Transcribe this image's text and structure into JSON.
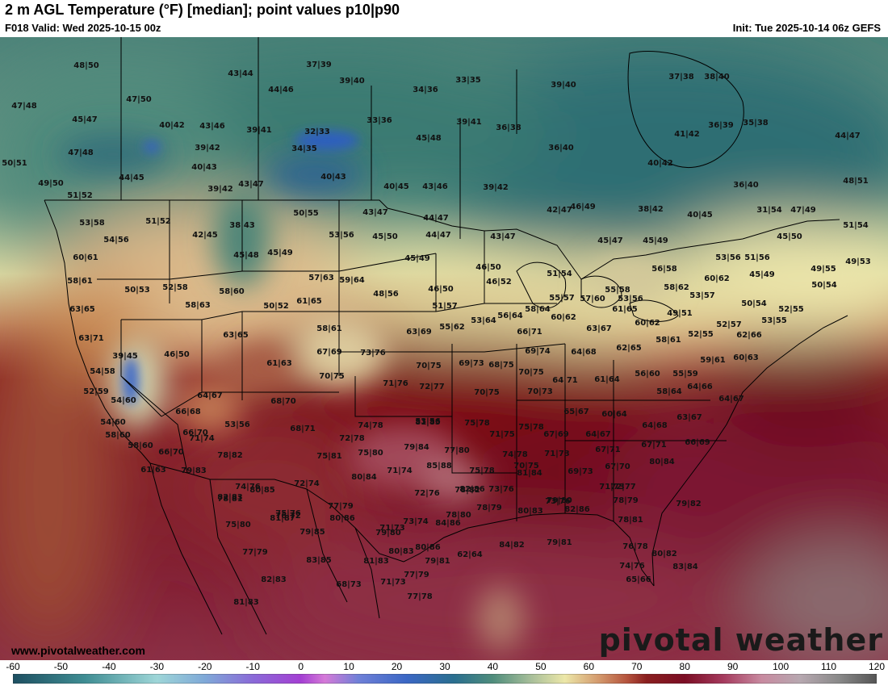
{
  "header": {
    "title": "2 m AGL Temperature (°F) [median]; point values p10|p90",
    "valid": "F018 Valid: Wed 2025-10-15 00z",
    "init": "Init: Tue 2025-10-14 06z GEFS"
  },
  "footer": {
    "website": "www.pivotalweather.com",
    "brand": "pivotal weather"
  },
  "colorbar": {
    "ticks": [
      "-60",
      "-50",
      "-40",
      "-30",
      "-20",
      "-10",
      "0",
      "10",
      "20",
      "30",
      "40",
      "50",
      "60",
      "70",
      "80",
      "90",
      "100",
      "110",
      "120"
    ],
    "range": [
      -60,
      120
    ],
    "stops": [
      {
        "t": -60,
        "c": "#1d4f61"
      },
      {
        "t": -45,
        "c": "#3f8d93"
      },
      {
        "t": -30,
        "c": "#9ed6d8"
      },
      {
        "t": -20,
        "c": "#7fa9d8"
      },
      {
        "t": -10,
        "c": "#8a6ad8"
      },
      {
        "t": 0,
        "c": "#a43fd3"
      },
      {
        "t": 5,
        "c": "#d57ad8"
      },
      {
        "t": 12,
        "c": "#6f80d8"
      },
      {
        "t": 22,
        "c": "#3b67c5"
      },
      {
        "t": 32,
        "c": "#2a6f8f"
      },
      {
        "t": 40,
        "c": "#4f8d7c"
      },
      {
        "t": 48,
        "c": "#a8bf9a"
      },
      {
        "t": 55,
        "c": "#ece7a8"
      },
      {
        "t": 62,
        "c": "#d49a6d"
      },
      {
        "t": 68,
        "c": "#b5533d"
      },
      {
        "t": 72,
        "c": "#8a1f1f"
      },
      {
        "t": 80,
        "c": "#7b0d24"
      },
      {
        "t": 88,
        "c": "#a53a5d"
      },
      {
        "t": 96,
        "c": "#c88aa0"
      },
      {
        "t": 104,
        "c": "#b7a8b0"
      },
      {
        "t": 112,
        "c": "#8a8a8a"
      },
      {
        "t": 120,
        "c": "#555555"
      }
    ]
  },
  "point_values": [
    {
      "text": "48|50"
    },
    {
      "text": "47|48"
    },
    {
      "text": "45|47"
    },
    {
      "text": "47|50"
    },
    {
      "text": "43|44"
    },
    {
      "text": "37|39"
    },
    {
      "text": "39|40"
    },
    {
      "text": "44|46"
    },
    {
      "text": "33|35"
    },
    {
      "text": "34|36"
    },
    {
      "text": "39|40"
    },
    {
      "text": "37|38"
    },
    {
      "text": "38|40"
    },
    {
      "text": "40|42"
    },
    {
      "text": "43|46"
    },
    {
      "text": "39|41"
    },
    {
      "text": "32|33"
    },
    {
      "text": "33|36"
    },
    {
      "text": "39|41"
    },
    {
      "text": "36|38"
    },
    {
      "text": "41|42"
    },
    {
      "text": "36|39"
    },
    {
      "text": "35|38"
    },
    {
      "text": "44|47"
    },
    {
      "text": "47|48"
    },
    {
      "text": "39|42"
    },
    {
      "text": "34|35"
    },
    {
      "text": "45|48"
    },
    {
      "text": "36|40"
    },
    {
      "text": "50|51"
    },
    {
      "text": "40|43"
    },
    {
      "text": "40|43"
    },
    {
      "text": "40|42"
    },
    {
      "text": "44|45"
    },
    {
      "text": "49|50"
    },
    {
      "text": "39|42"
    },
    {
      "text": "43|47"
    },
    {
      "text": "40|45"
    },
    {
      "text": "43|46"
    },
    {
      "text": "39|42"
    },
    {
      "text": "36|40"
    },
    {
      "text": "48|51"
    },
    {
      "text": "51|52"
    },
    {
      "text": "42|47"
    },
    {
      "text": "46|49"
    },
    {
      "text": "38|42"
    },
    {
      "text": "40|45"
    },
    {
      "text": "31|54"
    },
    {
      "text": "47|49"
    },
    {
      "text": "50|55"
    },
    {
      "text": "43|47"
    },
    {
      "text": "44|47"
    },
    {
      "text": "53|58"
    },
    {
      "text": "51|52"
    },
    {
      "text": "38|43"
    },
    {
      "text": "54|56"
    },
    {
      "text": "42|45"
    },
    {
      "text": "53|56"
    },
    {
      "text": "45|50"
    },
    {
      "text": "44|47"
    },
    {
      "text": "43|47"
    },
    {
      "text": "45|47"
    },
    {
      "text": "45|49"
    },
    {
      "text": "45|50"
    },
    {
      "text": "51|54"
    },
    {
      "text": "45|48"
    },
    {
      "text": "45|49"
    },
    {
      "text": "45|49"
    },
    {
      "text": "53|56"
    },
    {
      "text": "51|56"
    },
    {
      "text": "49|55"
    },
    {
      "text": "49|53"
    },
    {
      "text": "60|61"
    },
    {
      "text": "46|50"
    },
    {
      "text": "56|58"
    },
    {
      "text": "57|63"
    },
    {
      "text": "59|64"
    },
    {
      "text": "46|52"
    },
    {
      "text": "51|54"
    },
    {
      "text": "60|62"
    },
    {
      "text": "45|49"
    },
    {
      "text": "58|61"
    },
    {
      "text": "50|53"
    },
    {
      "text": "52|58"
    },
    {
      "text": "58|60"
    },
    {
      "text": "48|56"
    },
    {
      "text": "46|50"
    },
    {
      "text": "55|58"
    },
    {
      "text": "58|62"
    },
    {
      "text": "50|54"
    },
    {
      "text": "61|65"
    },
    {
      "text": "55|57"
    },
    {
      "text": "57|60"
    },
    {
      "text": "53|56"
    },
    {
      "text": "53|57"
    },
    {
      "text": "58|63"
    },
    {
      "text": "50|52"
    },
    {
      "text": "51|57"
    },
    {
      "text": "56|64"
    },
    {
      "text": "58|64"
    },
    {
      "text": "61|65"
    },
    {
      "text": "49|51"
    },
    {
      "text": "50|54"
    },
    {
      "text": "52|55"
    },
    {
      "text": "63|65"
    },
    {
      "text": "60|62"
    },
    {
      "text": "53|64"
    },
    {
      "text": "60|62"
    },
    {
      "text": "53|55"
    },
    {
      "text": "52|57"
    },
    {
      "text": "58|61"
    },
    {
      "text": "55|62"
    },
    {
      "text": "63|69"
    },
    {
      "text": "66|71"
    },
    {
      "text": "63|67"
    },
    {
      "text": "52|55"
    },
    {
      "text": "63|65"
    },
    {
      "text": "58|61"
    },
    {
      "text": "62|65"
    },
    {
      "text": "63|71"
    },
    {
      "text": "62|66"
    },
    {
      "text": "67|69"
    },
    {
      "text": "73|76"
    },
    {
      "text": "69|74"
    },
    {
      "text": "64|68"
    },
    {
      "text": "60|63"
    },
    {
      "text": "39|45"
    },
    {
      "text": "46|50"
    },
    {
      "text": "61|63"
    },
    {
      "text": "69|73"
    },
    {
      "text": "68|75"
    },
    {
      "text": "59|61"
    },
    {
      "text": "54|58"
    },
    {
      "text": "70|75"
    },
    {
      "text": "70|75"
    },
    {
      "text": "70|75"
    },
    {
      "text": "64|71"
    },
    {
      "text": "61|64"
    },
    {
      "text": "56|60"
    },
    {
      "text": "55|59"
    },
    {
      "text": "64|67"
    },
    {
      "text": "52|59"
    },
    {
      "text": "71|76"
    },
    {
      "text": "72|77"
    },
    {
      "text": "70|73"
    },
    {
      "text": "58|64"
    },
    {
      "text": "64|66"
    },
    {
      "text": "64|67"
    },
    {
      "text": "70|75"
    },
    {
      "text": "54|60"
    },
    {
      "text": "68|70"
    },
    {
      "text": "53|56"
    },
    {
      "text": "66|68"
    },
    {
      "text": "66|70"
    },
    {
      "text": "65|67"
    },
    {
      "text": "60|64"
    },
    {
      "text": "63|67"
    },
    {
      "text": "54|60"
    },
    {
      "text": "53|56"
    },
    {
      "text": "68|71"
    },
    {
      "text": "74|78"
    },
    {
      "text": "81|85"
    },
    {
      "text": "75|78"
    },
    {
      "text": "75|78"
    },
    {
      "text": "64|68"
    },
    {
      "text": "58|60"
    },
    {
      "text": "71|74"
    },
    {
      "text": "72|78"
    },
    {
      "text": "71|75"
    },
    {
      "text": "67|69"
    },
    {
      "text": "64|67"
    },
    {
      "text": "66|69"
    },
    {
      "text": "58|60"
    },
    {
      "text": "66|70"
    },
    {
      "text": "78|82"
    },
    {
      "text": "75|81"
    },
    {
      "text": "75|80"
    },
    {
      "text": "79|84"
    },
    {
      "text": "77|80"
    },
    {
      "text": "74|78"
    },
    {
      "text": "71|73"
    },
    {
      "text": "67|71"
    },
    {
      "text": "67|71"
    },
    {
      "text": "61|63"
    },
    {
      "text": "79|83"
    },
    {
      "text": "74|76"
    },
    {
      "text": "80|84"
    },
    {
      "text": "85|88"
    },
    {
      "text": "75|78"
    },
    {
      "text": "70|75"
    },
    {
      "text": "69|73"
    },
    {
      "text": "67|70"
    },
    {
      "text": "80|84"
    },
    {
      "text": "71|74"
    },
    {
      "text": "81|84"
    },
    {
      "text": "72|74"
    },
    {
      "text": "80|85"
    },
    {
      "text": "78|82"
    },
    {
      "text": "73|76"
    },
    {
      "text": "72|77"
    },
    {
      "text": "78|81"
    },
    {
      "text": "75|76"
    },
    {
      "text": "72|76"
    },
    {
      "text": "82|86"
    },
    {
      "text": "73|76"
    },
    {
      "text": "71|73"
    },
    {
      "text": "76|72"
    },
    {
      "text": "77|79"
    },
    {
      "text": "78|80"
    },
    {
      "text": "80|83"
    },
    {
      "text": "82|83"
    },
    {
      "text": "81|87"
    },
    {
      "text": "80|86"
    },
    {
      "text": "71|73"
    },
    {
      "text": "84|86"
    },
    {
      "text": "82|86"
    },
    {
      "text": "79|80"
    },
    {
      "text": "78|79"
    },
    {
      "text": "78|79"
    },
    {
      "text": "79|82"
    },
    {
      "text": "75|80"
    },
    {
      "text": "79|85"
    },
    {
      "text": "79|80"
    },
    {
      "text": "73|74"
    },
    {
      "text": "78|81"
    },
    {
      "text": "77|79"
    },
    {
      "text": "80|83"
    },
    {
      "text": "80|86"
    },
    {
      "text": "62|64"
    },
    {
      "text": "84|82"
    },
    {
      "text": "79|81"
    },
    {
      "text": "76|78"
    },
    {
      "text": "83|85"
    },
    {
      "text": "81|83"
    },
    {
      "text": "79|81"
    },
    {
      "text": "80|82"
    },
    {
      "text": "74|76"
    },
    {
      "text": "83|84"
    },
    {
      "text": "81|83"
    },
    {
      "text": "82|83"
    },
    {
      "text": "68|73"
    },
    {
      "text": "71|73"
    },
    {
      "text": "77|79"
    },
    {
      "text": "77|78"
    },
    {
      "text": "65|66"
    }
  ]
}
